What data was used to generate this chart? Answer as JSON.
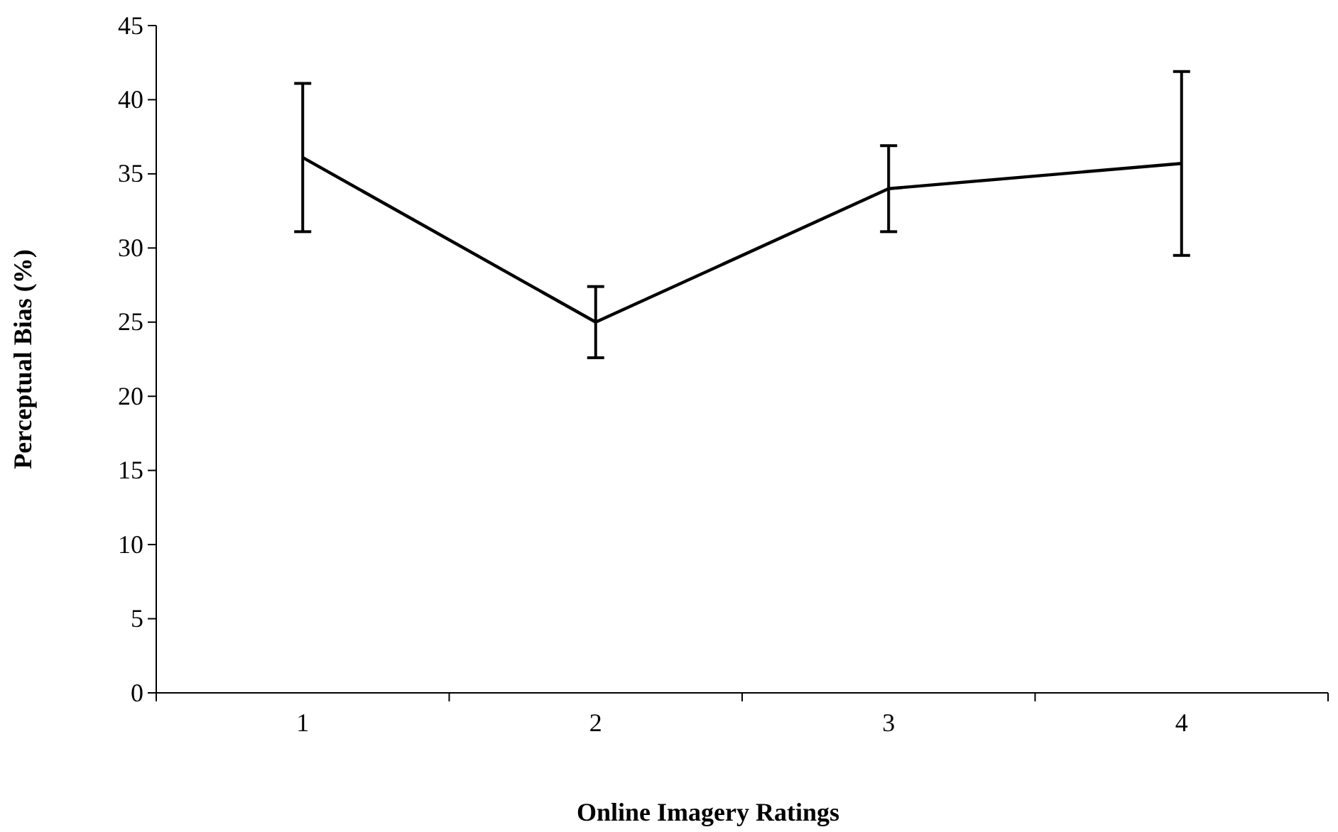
{
  "chart_data": {
    "type": "line",
    "xlabel": "Online Imagery Ratings",
    "ylabel": "Perceptual Bias (%)",
    "categories": [
      "1",
      "2",
      "3",
      "4"
    ],
    "series": [
      {
        "color": "#000000",
        "values": [
          36.1,
          25.0,
          34.0,
          35.7
        ],
        "errors": [
          5.0,
          2.4,
          2.9,
          6.2
        ]
      }
    ],
    "ylim": [
      0,
      45
    ],
    "yticks": [
      0,
      5,
      10,
      15,
      20,
      25,
      30,
      35,
      40,
      45
    ],
    "grid": false,
    "marker": "none",
    "line_style": "solid"
  }
}
